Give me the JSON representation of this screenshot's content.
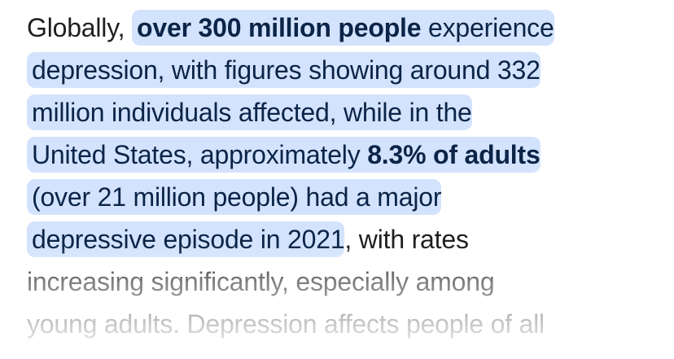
{
  "paragraph": {
    "l1_a": "Globally, ",
    "l1_b": "over 300 million people",
    "l1_c": " experience",
    "l2": "depression, with figures showing around 332",
    "l3": "million individuals affected, while in the",
    "l4_a": "United States, approximately ",
    "l4_b": "8.3% of adults",
    "l5": "(over 21 million people) had a major",
    "l6_a": "depressive episode in 2021",
    "l6_b": ", with rates",
    "l7": "increasing significantly, especially among",
    "l8": "young adults. Depression affects people of all"
  },
  "colors": {
    "highlight": "#d3e3fd",
    "highlight_text": "#0b2447",
    "text": "#1f1f1f"
  }
}
